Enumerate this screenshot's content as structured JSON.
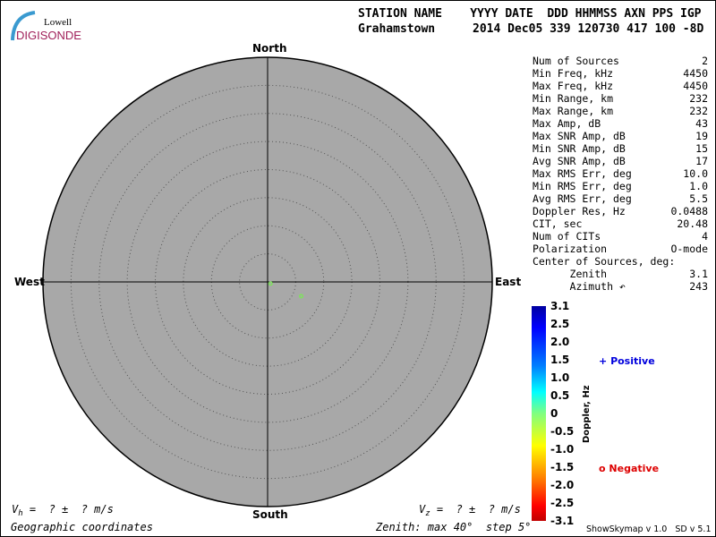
{
  "logo": {
    "line1": "Lowell",
    "line2": "DIGISONDE"
  },
  "header": {
    "labels": "STATION NAME    YYYY DATE  DDD HHMMSS AXN PPS IGP",
    "station": "Grahamstown",
    "values": "2014 Dec05 339 120730 417 100 -8D"
  },
  "directions": {
    "north": "North",
    "south": "South",
    "east": "East",
    "west": "West"
  },
  "sources": [
    {
      "zenith_deg": 0.6,
      "azimuth_deg": 120,
      "color": "#80e060"
    },
    {
      "zenith_deg": 6.5,
      "azimuth_deg": 113,
      "color": "#80e060"
    }
  ],
  "zenith_max_deg": 40,
  "zenith_step_deg": 5,
  "stats": [
    {
      "label": "Num of Sources",
      "value": "2"
    },
    {
      "label": "Min Freq, kHz",
      "value": "4450"
    },
    {
      "label": "Max Freq, kHz",
      "value": "4450"
    },
    {
      "label": "Min Range, km",
      "value": "232"
    },
    {
      "label": "Max Range, km",
      "value": "232"
    },
    {
      "label": "Max Amp, dB",
      "value": "43"
    },
    {
      "label": "Max SNR Amp, dB",
      "value": "19"
    },
    {
      "label": "Min SNR Amp, dB",
      "value": "15"
    },
    {
      "label": "Avg SNR Amp, dB",
      "value": "17"
    },
    {
      "label": "Max RMS Err, deg",
      "value": "10.0"
    },
    {
      "label": "Min RMS Err, deg",
      "value": "1.0"
    },
    {
      "label": "Avg RMS Err, deg",
      "value": "5.5"
    },
    {
      "label": "Doppler Res, Hz",
      "value": "0.0488"
    },
    {
      "label": "CIT, sec",
      "value": "20.48"
    },
    {
      "label": "Num of CITs",
      "value": "4"
    },
    {
      "label": "Polarization",
      "value": "O-mode"
    },
    {
      "label": "Center of Sources, deg:",
      "value": ""
    },
    {
      "label": "      Zenith",
      "value": "3.1"
    },
    {
      "label": "      Azimuth ↶",
      "value": "243"
    }
  ],
  "colorbar": {
    "title": "Doppler, Hz",
    "ticks": [
      "3.1",
      "2.5",
      "2.0",
      "1.5",
      "1.0",
      "0.5",
      "0",
      "-0.5",
      "-1.0",
      "-1.5",
      "-2.0",
      "-2.5",
      "-3.1"
    ]
  },
  "legend": {
    "positive_symbol": "+",
    "positive": "Positive",
    "positive_color": "#0000dd",
    "negative_symbol": "o",
    "negative": "Negative",
    "negative_color": "#dd0000"
  },
  "footer": {
    "vh": "=  ? ±  ? m/s",
    "vz": "=  ? ±  ? m/s",
    "coords": "Geographic coordinates",
    "zenith": "Zenith: max 40°  step 5°",
    "version": "ShowSkymap v 1.0   SD v 5.1"
  }
}
